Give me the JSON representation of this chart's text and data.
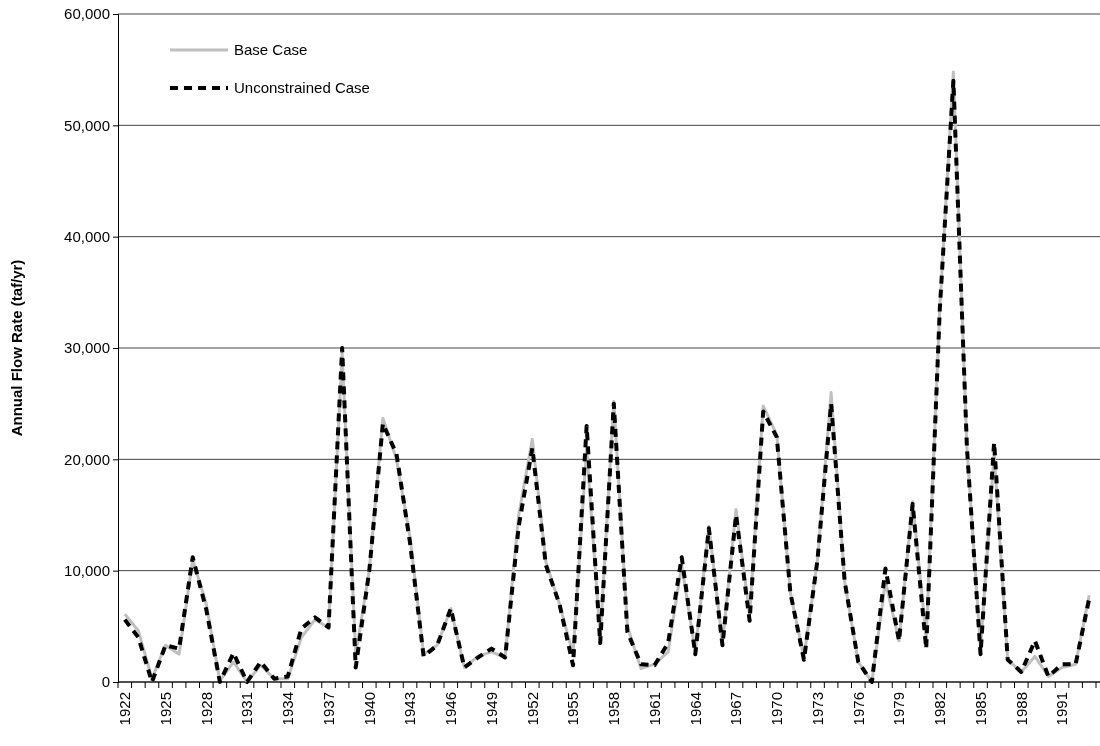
{
  "chart_data": {
    "type": "line",
    "ylabel": "Annual Flow Rate (taf/yr)",
    "categories": [
      "1922",
      null,
      null,
      "1925",
      null,
      null,
      "1928",
      null,
      null,
      "1931",
      null,
      null,
      "1934",
      null,
      null,
      "1937",
      null,
      null,
      "1940",
      null,
      null,
      "1943",
      null,
      null,
      "1946",
      null,
      null,
      "1949",
      null,
      null,
      "1952",
      null,
      null,
      "1955",
      null,
      null,
      "1958",
      null,
      null,
      "1961",
      null,
      null,
      "1964",
      null,
      null,
      "1967",
      null,
      null,
      "1970",
      null,
      null,
      "1973",
      null,
      null,
      "1976",
      null,
      null,
      "1979",
      null,
      null,
      "1982",
      null,
      null,
      "1985",
      null,
      null,
      "1988",
      null,
      null,
      "1991",
      null,
      null
    ],
    "series": [
      {
        "name": "Base Case",
        "color": "#c0c0c0",
        "line_style": "solid",
        "values": [
          6100,
          4600,
          300,
          3300,
          2500,
          11000,
          7000,
          100,
          1800,
          0,
          1500,
          300,
          300,
          4000,
          5600,
          4900,
          29500,
          2500,
          10000,
          23700,
          20000,
          13000,
          2500,
          3300,
          6600,
          1300,
          2300,
          2700,
          2200,
          15000,
          21800,
          10800,
          7000,
          2500,
          21000,
          4000,
          25200,
          5000,
          1200,
          1600,
          2700,
          10500,
          2700,
          14000,
          3500,
          15500,
          6000,
          24800,
          22200,
          8000,
          2200,
          11000,
          26000,
          9000,
          1800,
          0,
          9000,
          3700,
          16200,
          4000,
          33500,
          54800,
          21000,
          3000,
          20500,
          2000,
          900,
          2300,
          500,
          1300,
          1600,
          7800
        ]
      },
      {
        "name": "Unconstrained Case",
        "color": "#000000",
        "line_style": "dashed",
        "values": [
          5600,
          4000,
          0,
          3300,
          3000,
          11200,
          6500,
          0,
          2600,
          0,
          1800,
          300,
          500,
          4800,
          5800,
          4900,
          30000,
          1300,
          10000,
          23200,
          20500,
          12500,
          2300,
          3300,
          6600,
          1300,
          2200,
          3000,
          2200,
          14000,
          21000,
          10500,
          7000,
          1500,
          23000,
          3500,
          25000,
          4500,
          1600,
          1500,
          3500,
          11200,
          2500,
          13800,
          3300,
          15000,
          5500,
          24300,
          22000,
          8000,
          2000,
          11000,
          25000,
          9000,
          1800,
          0,
          10200,
          3700,
          16000,
          3000,
          33500,
          54000,
          21000,
          2500,
          21500,
          2000,
          900,
          3700,
          500,
          1600,
          1600,
          7500
        ]
      }
    ],
    "ylim": [
      0,
      60000
    ],
    "yticks": [
      {
        "value": 0,
        "label": "0"
      },
      {
        "value": 10000,
        "label": "10,000"
      },
      {
        "value": 20000,
        "label": "20,000"
      },
      {
        "value": 30000,
        "label": "30,000"
      },
      {
        "value": 40000,
        "label": "40,000"
      },
      {
        "value": 50000,
        "label": "50,000"
      },
      {
        "value": 60000,
        "label": "60,000"
      }
    ],
    "grid": "y",
    "legend": "top left"
  }
}
